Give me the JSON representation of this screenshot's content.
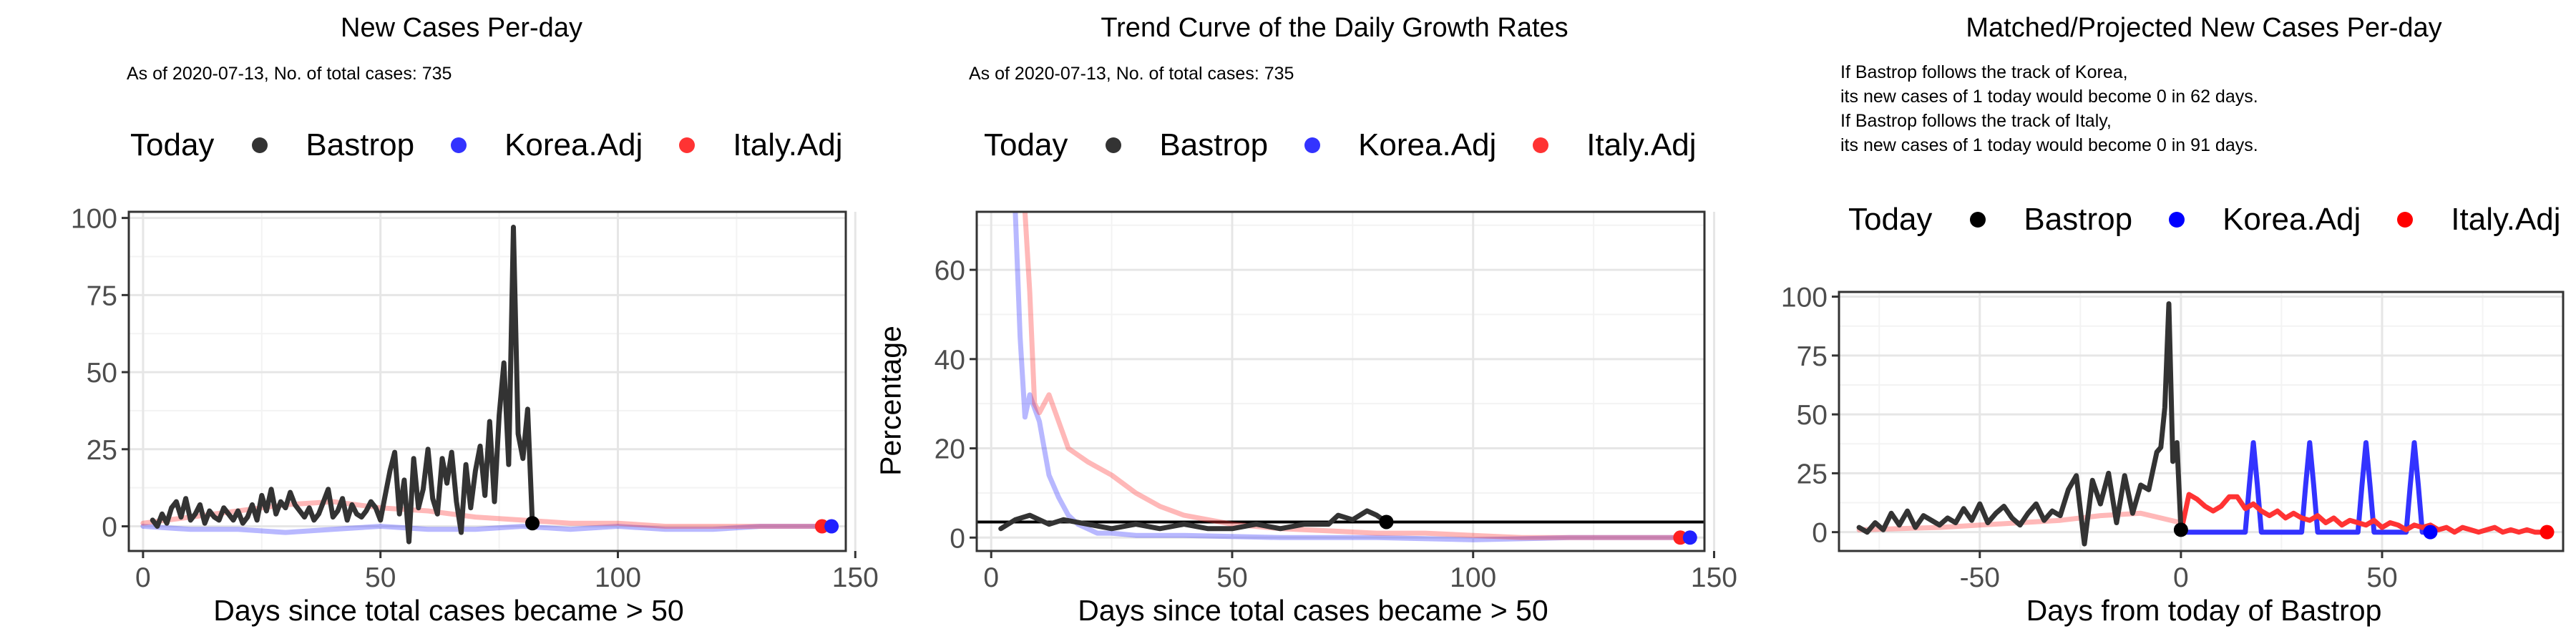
{
  "colors": {
    "bastrop": "#333333",
    "korea": "#3333ff",
    "italy": "#ff3333",
    "grid_major": "#e6e6e6",
    "grid_minor": "#f3f3f3",
    "panel_border": "#333333",
    "tick_text": "#4d4d4d",
    "legend_3_bastrop": "#000000",
    "legend_3_korea": "#0000ff",
    "legend_3_italy": "#ff0000"
  },
  "legend": {
    "title": "Today",
    "items": [
      "Bastrop",
      "Korea.Adj",
      "Italy.Adj"
    ]
  },
  "chart_data": [
    {
      "type": "line",
      "title": "New Cases Per-day",
      "subtitle": "As of 2020-07-13, No. of total cases: 735",
      "xlabel": "Days since total cases became > 50",
      "ylabel": "",
      "xlim": [
        -3,
        148
      ],
      "ylim": [
        -8,
        102
      ],
      "xticks": [
        0,
        50,
        100,
        150
      ],
      "yticks": [
        0,
        25,
        50,
        75,
        100
      ],
      "grid": true,
      "legend_position": "top",
      "series": [
        {
          "name": "Bastrop",
          "color_key": "bastrop",
          "x": [
            2,
            3,
            4,
            5,
            6,
            7,
            8,
            9,
            10,
            11,
            12,
            13,
            14,
            15,
            16,
            17,
            18,
            19,
            20,
            21,
            22,
            23,
            24,
            25,
            26,
            27,
            28,
            29,
            30,
            31,
            32,
            33,
            34,
            35,
            36,
            37,
            38,
            39,
            40,
            41,
            42,
            43,
            44,
            45,
            46,
            47,
            48,
            49,
            50,
            51,
            52,
            53,
            54,
            55,
            56,
            57,
            58,
            59,
            60,
            61,
            62,
            63,
            64,
            65,
            66,
            67,
            68,
            69,
            70,
            71,
            72,
            73,
            74,
            75,
            76,
            77,
            78,
            79,
            80,
            81,
            82
          ],
          "y": [
            2,
            0,
            4,
            1,
            6,
            8,
            3,
            9,
            2,
            4,
            7,
            1,
            5,
            3,
            2,
            6,
            4,
            2,
            5,
            1,
            3,
            7,
            2,
            10,
            5,
            12,
            4,
            8,
            6,
            11,
            7,
            5,
            3,
            6,
            2,
            4,
            8,
            12,
            3,
            5,
            9,
            2,
            7,
            4,
            3,
            5,
            8,
            6,
            2,
            10,
            18,
            24,
            4,
            15,
            -5,
            22,
            6,
            12,
            25,
            9,
            4,
            22,
            14,
            24,
            8,
            -2,
            20,
            6,
            18,
            26,
            10,
            34,
            8,
            36,
            53,
            20,
            97,
            30,
            22,
            38,
            1
          ],
          "end_marker": true
        },
        {
          "name": "Korea.Adj",
          "color_key": "korea",
          "faded": true,
          "x": [
            0,
            10,
            20,
            30,
            40,
            50,
            60,
            70,
            80,
            90,
            100,
            110,
            120,
            130,
            140,
            145
          ],
          "y": [
            0,
            -1,
            -1,
            -2,
            -1,
            0,
            -1,
            -1,
            0,
            -1,
            0,
            -1,
            -1,
            0,
            0,
            0
          ],
          "end_marker": true
        },
        {
          "name": "Italy.Adj",
          "color_key": "italy",
          "faded": true,
          "x": [
            0,
            10,
            20,
            30,
            40,
            50,
            60,
            70,
            80,
            90,
            100,
            110,
            120,
            130,
            140,
            143
          ],
          "y": [
            1,
            3,
            5,
            7,
            8,
            6,
            5,
            3,
            2,
            1,
            1,
            0,
            0,
            0,
            0,
            0
          ],
          "end_marker": true
        }
      ]
    },
    {
      "type": "line",
      "title": "Trend Curve of the Daily Growth Rates",
      "subtitle": "As of 2020-07-13, No. of total cases: 735",
      "xlabel": "Days since total cases became > 50",
      "ylabel": "Percentage",
      "xlim": [
        -3,
        148
      ],
      "ylim": [
        -3,
        73
      ],
      "xticks": [
        0,
        50,
        100,
        150
      ],
      "yticks": [
        0,
        20,
        40,
        60
      ],
      "grid": true,
      "hline": 3.5,
      "legend_position": "top",
      "series": [
        {
          "name": "Bastrop",
          "color_key": "bastrop",
          "x": [
            2,
            5,
            8,
            12,
            15,
            20,
            25,
            30,
            35,
            40,
            45,
            50,
            55,
            60,
            65,
            70,
            72,
            75,
            78,
            80,
            82
          ],
          "y": [
            2,
            4,
            5,
            3,
            4,
            3,
            2,
            3,
            2,
            3,
            2,
            2,
            3,
            2,
            3,
            3,
            5,
            4,
            6,
            5,
            3.5
          ],
          "end_marker": true
        },
        {
          "name": "Korea.Adj",
          "color_key": "korea",
          "faded": true,
          "x": [
            5,
            6,
            7,
            8,
            9,
            10,
            11,
            12,
            14,
            16,
            18,
            20,
            22,
            25,
            30,
            40,
            60,
            80,
            100,
            120,
            140,
            145
          ],
          "y": [
            73,
            45,
            27,
            32,
            29,
            26,
            20,
            14,
            9,
            5,
            3,
            2,
            1,
            1,
            0.5,
            0.5,
            0,
            0,
            -0.5,
            0,
            0,
            0
          ],
          "end_marker": true
        },
        {
          "name": "Italy.Adj",
          "color_key": "italy",
          "faded": true,
          "x": [
            7,
            8,
            9,
            10,
            12,
            14,
            16,
            20,
            25,
            30,
            35,
            40,
            45,
            50,
            60,
            70,
            80,
            90,
            100,
            110,
            120,
            130,
            140,
            143
          ],
          "y": [
            73,
            55,
            30,
            28,
            32,
            26,
            20,
            17,
            14,
            10,
            7,
            5,
            4,
            3,
            2,
            1.5,
            1,
            1,
            0.5,
            0,
            0,
            0,
            0,
            0
          ],
          "end_marker": true
        }
      ]
    },
    {
      "type": "line",
      "title": "Matched/Projected New Cases Per-day",
      "subtitle_lines": [
        "If Bastrop follows the track of Korea,",
        "its new cases of 1 today would become 0 in 62 days.",
        "If Bastrop follows the track of Italy,",
        "its new cases of 1 today would become 0 in 91 days."
      ],
      "xlabel": "Days from today of Bastrop",
      "ylabel": "",
      "xlim": [
        -85,
        95
      ],
      "ylim": [
        -8,
        102
      ],
      "xticks": [
        -50,
        0,
        50
      ],
      "yticks": [
        0,
        25,
        50,
        75,
        100
      ],
      "grid": true,
      "legend_position": "top",
      "series": [
        {
          "name": "Bastrop",
          "color_key": "bastrop",
          "x": [
            -80,
            -78,
            -76,
            -74,
            -72,
            -70,
            -68,
            -66,
            -64,
            -62,
            -60,
            -58,
            -56,
            -54,
            -52,
            -50,
            -48,
            -46,
            -44,
            -42,
            -40,
            -38,
            -36,
            -34,
            -32,
            -30,
            -28,
            -26,
            -24,
            -22,
            -20,
            -18,
            -16,
            -14,
            -12,
            -10,
            -8,
            -7,
            -6,
            -5,
            -4,
            -3,
            -2,
            -1,
            0
          ],
          "y": [
            2,
            0,
            4,
            1,
            8,
            3,
            9,
            2,
            7,
            5,
            3,
            6,
            4,
            10,
            5,
            12,
            4,
            8,
            11,
            6,
            3,
            8,
            12,
            5,
            9,
            7,
            18,
            24,
            -5,
            22,
            12,
            25,
            4,
            24,
            8,
            20,
            18,
            26,
            34,
            36,
            53,
            97,
            30,
            38,
            1
          ],
          "end_marker": true
        },
        {
          "name": "Korea.Adj",
          "color_key": "korea",
          "x": [
            0,
            16,
            17,
            18,
            19,
            20,
            21,
            30,
            31,
            32,
            33,
            34,
            35,
            44,
            45,
            46,
            47,
            48,
            49,
            56,
            57,
            58,
            59,
            60,
            61,
            62
          ],
          "y": [
            0,
            0,
            20,
            38,
            20,
            0,
            0,
            0,
            20,
            38,
            20,
            0,
            0,
            0,
            20,
            38,
            20,
            0,
            0,
            0,
            20,
            38,
            20,
            0,
            0,
            0
          ],
          "end_marker": true
        },
        {
          "name": "Italy.Adj",
          "color_key": "italy",
          "x": [
            0,
            2,
            4,
            6,
            8,
            10,
            12,
            14,
            16,
            18,
            20,
            22,
            24,
            26,
            28,
            30,
            32,
            34,
            36,
            38,
            40,
            42,
            44,
            46,
            48,
            50,
            52,
            54,
            56,
            58,
            60,
            62,
            64,
            66,
            68,
            70,
            72,
            74,
            76,
            78,
            80,
            82,
            84,
            86,
            88,
            91
          ],
          "y": [
            0,
            16,
            14,
            11,
            9,
            11,
            15,
            15,
            10,
            12,
            9,
            7,
            9,
            6,
            8,
            6,
            5,
            7,
            4,
            6,
            3,
            5,
            4,
            3,
            5,
            2,
            4,
            3,
            1,
            3,
            2,
            3,
            1,
            2,
            0,
            2,
            1,
            0,
            1,
            2,
            0,
            1,
            0,
            1,
            0,
            0
          ],
          "end_marker": true
        },
        {
          "name": "Bastrop-faded-history",
          "color_key": "italy",
          "faded": true,
          "x": [
            -80,
            -60,
            -40,
            -30,
            -20,
            -10,
            0
          ],
          "y": [
            1,
            2,
            4,
            5,
            7,
            8,
            4
          ],
          "end_marker": false
        }
      ]
    }
  ]
}
